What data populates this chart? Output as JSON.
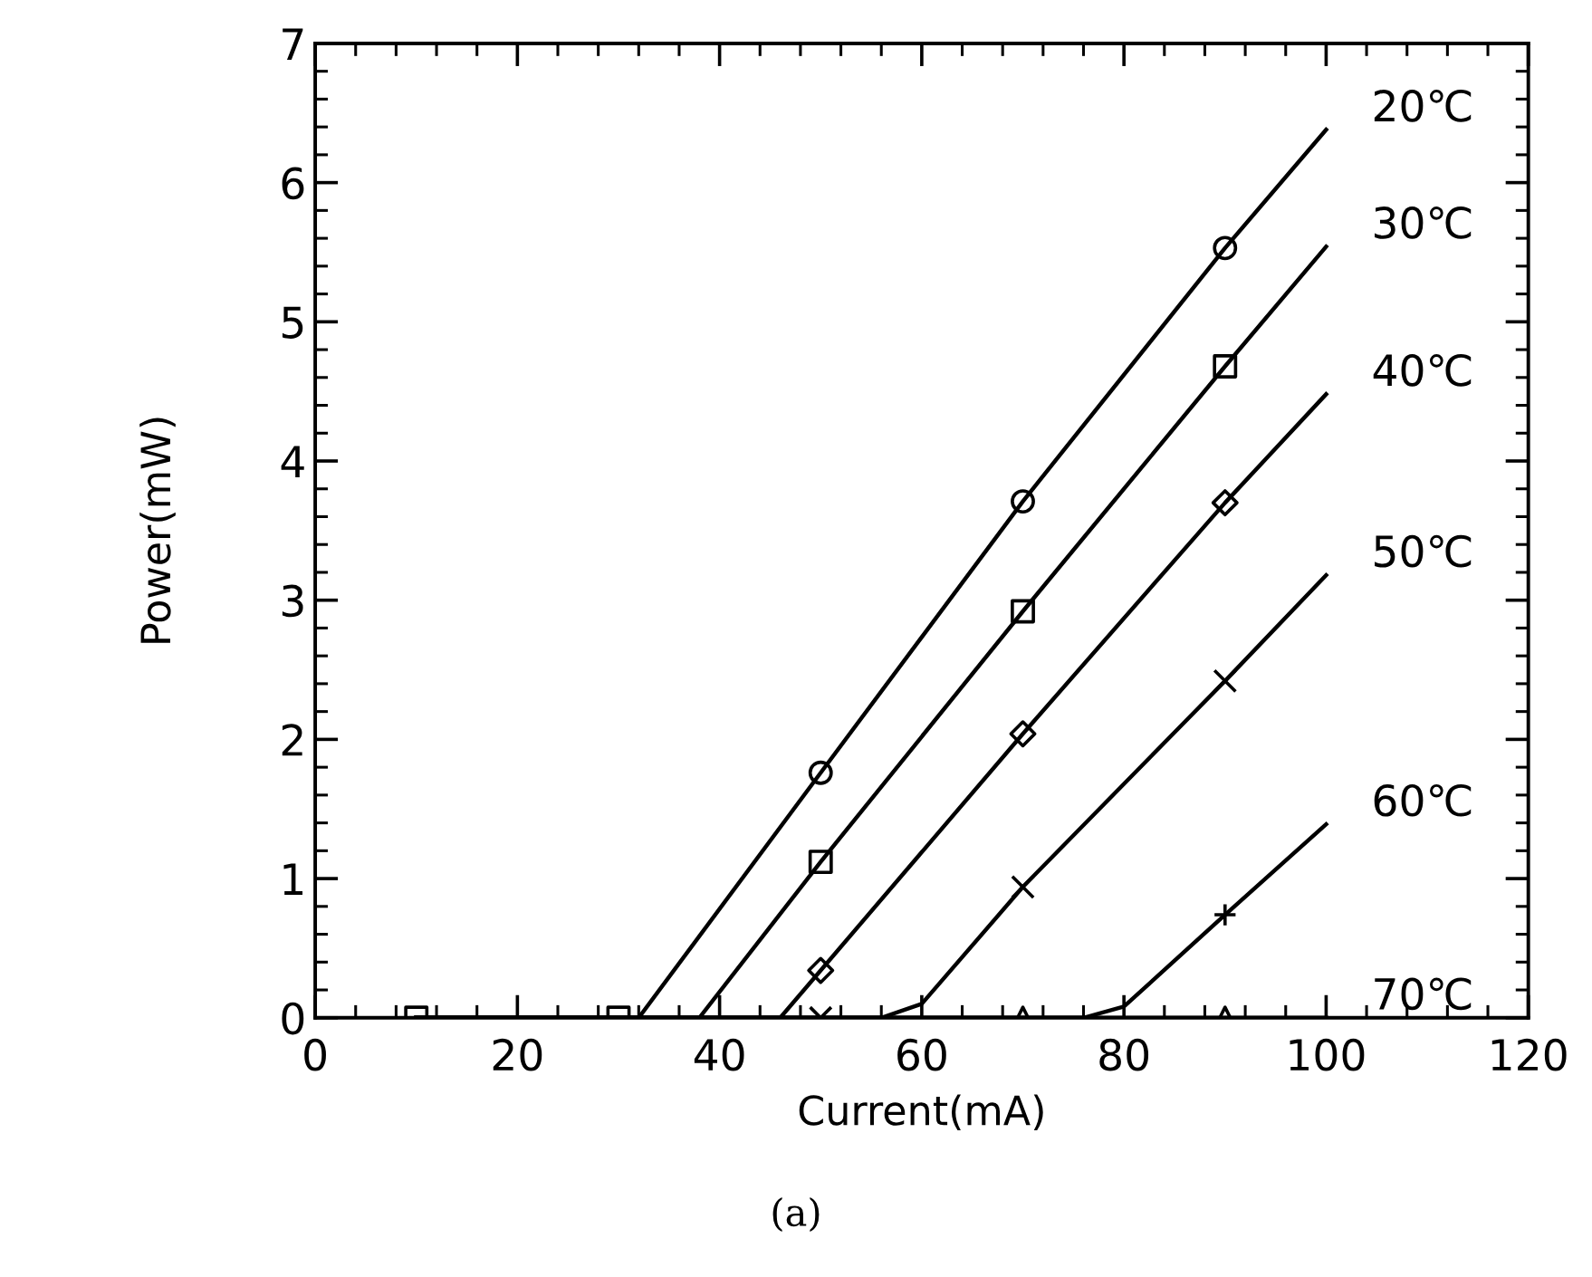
{
  "chart_data": {
    "type": "line",
    "xlabel": "Current(mA)",
    "ylabel": "Power(mW)",
    "xlim": [
      0,
      120
    ],
    "xticks": [
      0,
      20,
      40,
      60,
      80,
      100,
      120
    ],
    "ylim": [
      0,
      7
    ],
    "yticks": [
      0,
      1,
      2,
      3,
      4,
      5,
      6,
      7
    ],
    "grid": false,
    "legend": "right",
    "annotations": [
      "(a)"
    ],
    "series": [
      {
        "name": "20℃",
        "color": "#000000",
        "marker": "none",
        "x": [
          10,
          30,
          32,
          50,
          70,
          90,
          100
        ],
        "values": [
          0,
          0,
          0,
          1.76,
          3.71,
          5.53,
          6.38
        ]
      },
      {
        "name": "30℃",
        "color": "#000000",
        "marker": "none",
        "x": [
          10,
          30,
          38,
          50,
          70,
          90,
          100
        ],
        "values": [
          0,
          0,
          0,
          1.12,
          2.92,
          4.68,
          5.54
        ]
      },
      {
        "name": "40℃",
        "color": "#000000",
        "marker": "none",
        "x": [
          10,
          30,
          46,
          50,
          70,
          90,
          100
        ],
        "values": [
          0,
          0,
          0,
          0.34,
          2.04,
          3.7,
          4.48
        ]
      },
      {
        "name": "50℃",
        "color": "#000000",
        "marker": "none",
        "x": [
          10,
          30,
          50,
          56,
          60,
          70,
          90,
          100
        ],
        "values": [
          0,
          0,
          0,
          0,
          0.1,
          0.94,
          2.42,
          3.18
        ]
      },
      {
        "name": "60℃",
        "color": "#000000",
        "marker": "none",
        "x": [
          10,
          30,
          50,
          70,
          76,
          80,
          90,
          100
        ],
        "values": [
          0,
          0,
          0,
          0,
          0,
          0.08,
          0.74,
          1.39
        ]
      },
      {
        "name": "70℃",
        "color": "#000000",
        "marker": "none",
        "x": [
          10,
          100
        ],
        "values": [
          0,
          0
        ]
      },
      {
        "type": "scatter",
        "color": "#000000",
        "marker": "circle",
        "x": [
          50,
          70,
          90
        ],
        "values": [
          1.76,
          3.71,
          5.53
        ]
      },
      {
        "type": "scatter",
        "color": "#000000",
        "marker": "square",
        "x": [
          10,
          30,
          50,
          70,
          90
        ],
        "values": [
          0,
          0,
          1.12,
          2.92,
          4.68
        ]
      },
      {
        "type": "scatter",
        "color": "#000000",
        "marker": "diamond",
        "x": [
          50,
          70,
          90
        ],
        "values": [
          0.34,
          2.04,
          3.7
        ]
      },
      {
        "type": "scatter",
        "color": "#000000",
        "marker": "cross",
        "x": [
          50,
          70,
          90
        ],
        "values": [
          0,
          0.94,
          2.42
        ]
      },
      {
        "type": "scatter",
        "color": "#000000",
        "marker": "plus",
        "x": [
          90
        ],
        "values": [
          0.74
        ]
      },
      {
        "type": "scatter",
        "color": "#000000",
        "marker": "triangle",
        "x": [
          70,
          90
        ],
        "values": [
          0,
          0
        ]
      }
    ]
  }
}
